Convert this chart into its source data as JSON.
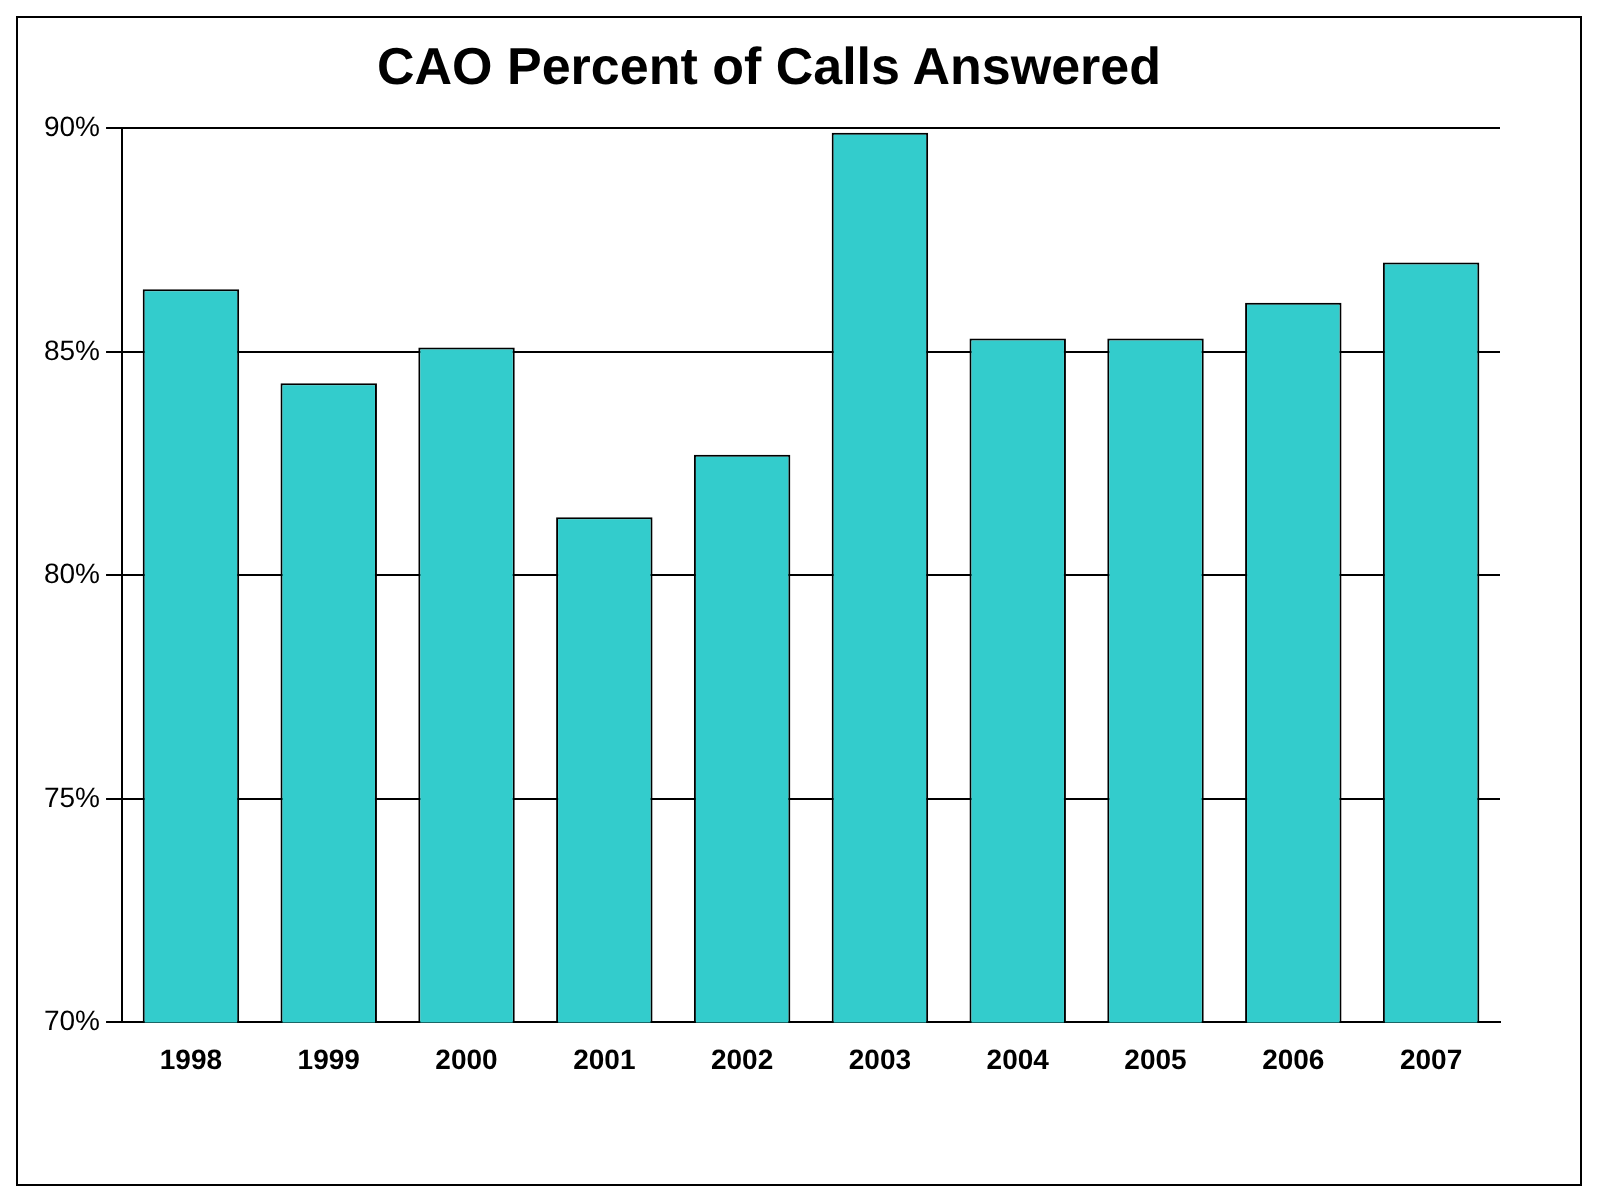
{
  "chart_data": {
    "type": "bar",
    "title": "CAO Percent of Calls Answered",
    "categories": [
      "1998",
      "1999",
      "2000",
      "2001",
      "2002",
      "2003",
      "2004",
      "2005",
      "2006",
      "2007"
    ],
    "values": [
      86.4,
      84.3,
      85.1,
      81.3,
      82.7,
      89.9,
      85.3,
      85.3,
      86.1,
      87.0
    ],
    "color": "#33cccc",
    "ylim": [
      70,
      90
    ],
    "yticks": [
      {
        "value": 70,
        "label": "70%"
      },
      {
        "value": 75,
        "label": "75%"
      },
      {
        "value": 80,
        "label": "80%"
      },
      {
        "value": 85,
        "label": "85%"
      },
      {
        "value": 90,
        "label": "90%"
      }
    ],
    "grid": "y"
  }
}
